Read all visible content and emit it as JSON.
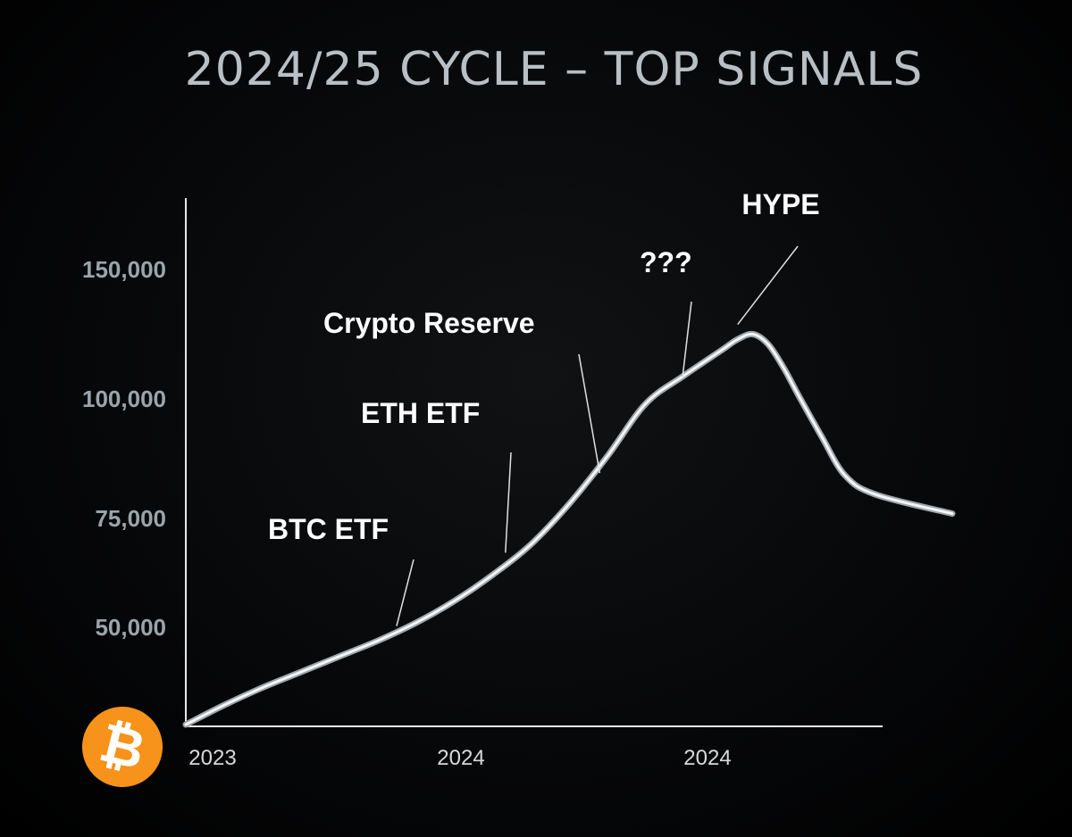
{
  "chart_data": {
    "type": "line",
    "title": "2024/25 CYCLE – TOP SIGNALS",
    "xlabel": "",
    "ylabel": "",
    "x_ticks": [
      "2023",
      "2024",
      "2024"
    ],
    "y_ticks": [
      50000,
      75000,
      100000,
      150000
    ],
    "y_tick_labels": [
      "50,000",
      "75,000",
      "100,000",
      "150,000"
    ],
    "grid": false,
    "series": [
      {
        "points": [
          [
            0.0,
            25000
          ],
          [
            0.05,
            30000
          ],
          [
            0.1,
            34500
          ],
          [
            0.15,
            38500
          ],
          [
            0.2,
            42500
          ],
          [
            0.25,
            46500
          ],
          [
            0.3,
            51000
          ],
          [
            0.35,
            56000
          ],
          [
            0.4,
            62000
          ],
          [
            0.45,
            69000
          ],
          [
            0.5,
            78000
          ],
          [
            0.55,
            88000
          ],
          [
            0.6,
            99000
          ],
          [
            0.65,
            109000
          ],
          [
            0.7,
            119000
          ],
          [
            0.72,
            123000
          ],
          [
            0.74,
            125000
          ],
          [
            0.76,
            121000
          ],
          [
            0.78,
            112000
          ],
          [
            0.8,
            101000
          ],
          [
            0.83,
            92000
          ],
          [
            0.86,
            84000
          ],
          [
            0.9,
            80000
          ],
          [
            1.0,
            76000
          ]
        ]
      }
    ],
    "annotations": [
      {
        "label": "BTC ETF",
        "x": 0.275,
        "y": 48500
      },
      {
        "label": "ETH ETF",
        "x": 0.417,
        "y": 65500
      },
      {
        "label": "Crypto Reserve",
        "x": 0.54,
        "y": 83000
      },
      {
        "label": "???",
        "x": 0.648,
        "y": 105500
      },
      {
        "label": "HYPE",
        "x": 0.72,
        "y": 126000
      }
    ]
  },
  "logo": {
    "name": "bitcoin-icon",
    "glyph": "₿",
    "color": "#f7931a"
  }
}
